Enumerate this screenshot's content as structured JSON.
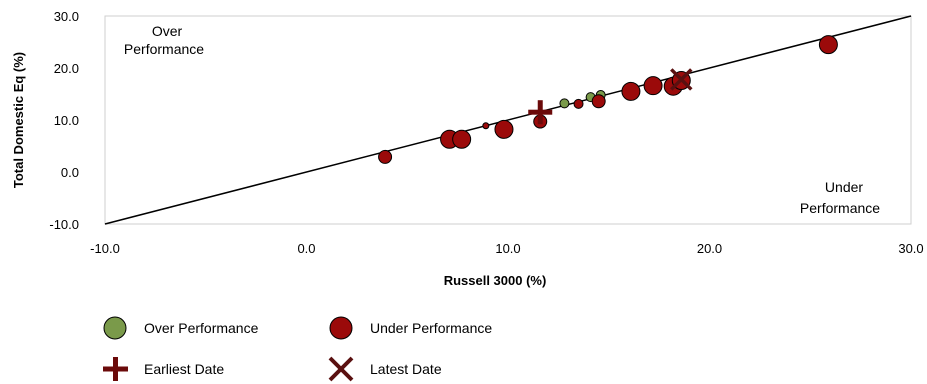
{
  "chart_data": {
    "type": "scatter",
    "xlabel": "Russell 3000  (%)",
    "ylabel": "Total Domestic Eq  (%)",
    "xlim": [
      -10,
      30
    ],
    "ylim": [
      -10,
      30
    ],
    "x_ticks": [
      "-10.0",
      "0.0",
      "10.0",
      "20.0",
      "30.0"
    ],
    "y_ticks": [
      "-10.0",
      "0.0",
      "10.0",
      "20.0",
      "30.0"
    ],
    "x_tick_values": [
      -10,
      0,
      10,
      20,
      30
    ],
    "y_tick_values": [
      -10,
      0,
      10,
      20,
      30
    ],
    "reference_line": [
      [
        -10,
        -10
      ],
      [
        30,
        30
      ]
    ],
    "annotations": {
      "over_line1": "Over",
      "over_line2": "Performance",
      "under_line1": "Under",
      "under_line2": "Performance"
    },
    "series": [
      {
        "name": "Over Performance",
        "color": "#7a9a4a",
        "points": [
          {
            "x": 12.8,
            "y": 13.2,
            "size": "small"
          },
          {
            "x": 14.1,
            "y": 14.4,
            "size": "small"
          },
          {
            "x": 14.6,
            "y": 14.8,
            "size": "small"
          }
        ]
      },
      {
        "name": "Under Performance",
        "color": "#9b0a0a",
        "points": [
          {
            "x": 3.9,
            "y": 2.9,
            "size": "medium"
          },
          {
            "x": 7.1,
            "y": 6.3,
            "size": "large"
          },
          {
            "x": 7.7,
            "y": 6.3,
            "size": "large"
          },
          {
            "x": 8.9,
            "y": 8.9,
            "size": "tiny"
          },
          {
            "x": 9.8,
            "y": 8.2,
            "size": "large"
          },
          {
            "x": 11.6,
            "y": 9.7,
            "size": "medium"
          },
          {
            "x": 13.5,
            "y": 13.1,
            "size": "small"
          },
          {
            "x": 14.5,
            "y": 13.6,
            "size": "medium"
          },
          {
            "x": 16.1,
            "y": 15.5,
            "size": "large"
          },
          {
            "x": 17.2,
            "y": 16.6,
            "size": "large"
          },
          {
            "x": 18.2,
            "y": 16.5,
            "size": "large"
          },
          {
            "x": 18.6,
            "y": 17.6,
            "size": "large"
          },
          {
            "x": 25.9,
            "y": 24.5,
            "size": "large"
          }
        ]
      }
    ],
    "markers": [
      {
        "name": "Earliest Date",
        "shape": "plus",
        "x": 11.6,
        "y": 11.5,
        "color": "#6b0a0a"
      },
      {
        "name": "Latest Date",
        "shape": "x",
        "x": 18.6,
        "y": 17.8,
        "color": "#5a1010"
      }
    ],
    "legend": {
      "placement": "bottom",
      "items": [
        {
          "label": "Over Performance",
          "symbol": "circle",
          "color": "#7a9a4a"
        },
        {
          "label": "Under Performance",
          "symbol": "circle",
          "color": "#9b0a0a"
        },
        {
          "label": "Earliest Date",
          "symbol": "plus",
          "color": "#6b0a0a"
        },
        {
          "label": "Latest Date",
          "symbol": "x",
          "color": "#5a1010"
        }
      ]
    }
  }
}
